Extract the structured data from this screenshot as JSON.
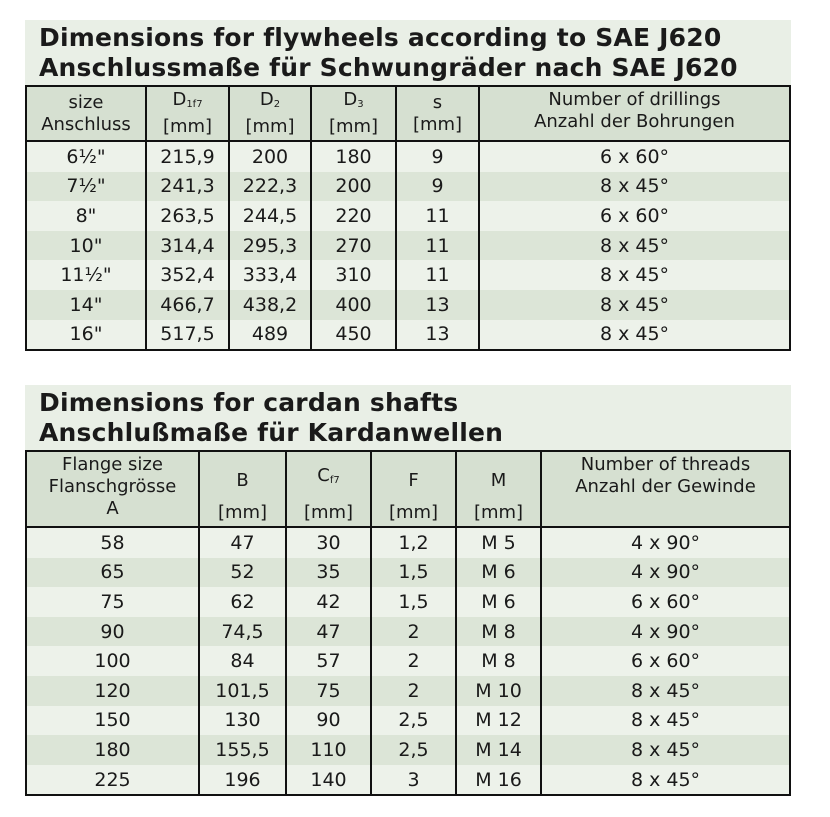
{
  "flywheels": {
    "title_en": "Dimensions for flywheels according to SAE J620",
    "title_de": "Anschlussmaße für Schwungräder nach SAE J620",
    "headers": [
      {
        "line1": "size",
        "line2": "Anschluss"
      },
      {
        "main": "D",
        "sub": "1f7",
        "unit": "[mm]"
      },
      {
        "main": "D",
        "sub": "2",
        "unit": "[mm]"
      },
      {
        "main": "D",
        "sub": "3",
        "unit": "[mm]"
      },
      {
        "main": "s",
        "sub": "",
        "unit": "[mm]"
      },
      {
        "line1": "Number of drillings",
        "line2": "Anzahl der Bohrungen"
      }
    ],
    "rows": [
      [
        "6½\"",
        "215,9",
        "200",
        "180",
        "9",
        "6 x 60°"
      ],
      [
        "7½\"",
        "241,3",
        "222,3",
        "200",
        "9",
        "8 x 45°"
      ],
      [
        "8\"",
        "263,5",
        "244,5",
        "220",
        "11",
        "6 x 60°"
      ],
      [
        "10\"",
        "314,4",
        "295,3",
        "270",
        "11",
        "8 x 45°"
      ],
      [
        "11½\"",
        "352,4",
        "333,4",
        "310",
        "11",
        "8 x 45°"
      ],
      [
        "14\"",
        "466,7",
        "438,2",
        "400",
        "13",
        "8 x 45°"
      ],
      [
        "16\"",
        "517,5",
        "489",
        "450",
        "13",
        "8 x 45°"
      ]
    ]
  },
  "cardan": {
    "title_en": "Dimensions for cardan shafts",
    "title_de": "Anschlußmaße für Kardanwellen",
    "headers": [
      {
        "line1": "Flange size",
        "line2": "Flanschgrösse",
        "line3": "A"
      },
      {
        "main": "B",
        "sub": "",
        "unit": "[mm]"
      },
      {
        "main": "C",
        "sub": "f7",
        "unit": "[mm]"
      },
      {
        "main": "F",
        "sub": "",
        "unit": "[mm]"
      },
      {
        "main": "M",
        "sub": "",
        "unit": "[mm]"
      },
      {
        "line1": "Number of threads",
        "line2": "Anzahl der Gewinde"
      }
    ],
    "rows": [
      [
        "58",
        "47",
        "30",
        "1,2",
        "M 5",
        "4 x 90°"
      ],
      [
        "65",
        "52",
        "35",
        "1,5",
        "M 6",
        "4 x 90°"
      ],
      [
        "75",
        "62",
        "42",
        "1,5",
        "M 6",
        "6 x 60°"
      ],
      [
        "90",
        "74,5",
        "47",
        "2",
        "M 8",
        "4 x 90°"
      ],
      [
        "100",
        "84",
        "57",
        "2",
        "M 8",
        "6 x 60°"
      ],
      [
        "120",
        "101,5",
        "75",
        "2",
        "M 10",
        "8 x 45°"
      ],
      [
        "150",
        "130",
        "90",
        "2,5",
        "M 12",
        "8 x 45°"
      ],
      [
        "180",
        "155,5",
        "110",
        "2,5",
        "M 14",
        "8 x 45°"
      ],
      [
        "225",
        "196",
        "140",
        "3",
        "M 16",
        "8 x 45°"
      ]
    ]
  }
}
